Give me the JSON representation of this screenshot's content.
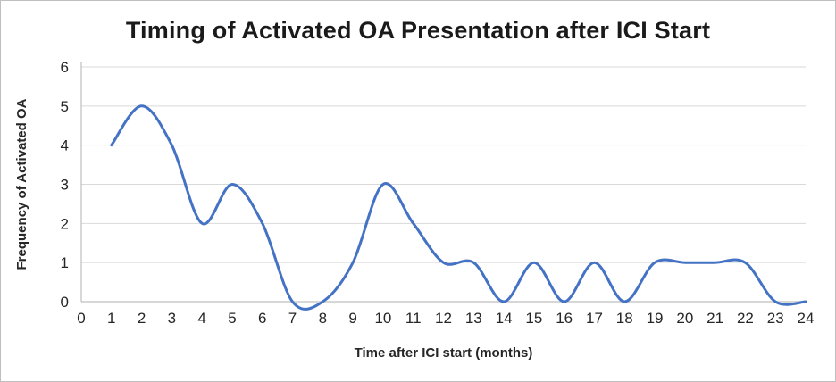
{
  "chart_data": {
    "type": "line",
    "title": "Timing of Activated OA Presentation after ICI Start",
    "xlabel": "Time after ICI start (months)",
    "ylabel": "Frequency of Activated OA",
    "x": [
      1,
      2,
      3,
      4,
      5,
      6,
      7,
      8,
      9,
      10,
      11,
      12,
      13,
      14,
      15,
      16,
      17,
      18,
      19,
      20,
      21,
      22,
      23,
      24
    ],
    "values": [
      4,
      5,
      4,
      2,
      3,
      2,
      0,
      0,
      1,
      3,
      2,
      1,
      1,
      0,
      1,
      0,
      1,
      0,
      1,
      1,
      1,
      1,
      0,
      0
    ],
    "x_ticks": [
      0,
      1,
      2,
      3,
      4,
      5,
      6,
      7,
      8,
      9,
      10,
      11,
      12,
      13,
      14,
      15,
      16,
      17,
      18,
      19,
      20,
      21,
      22,
      23,
      24
    ],
    "y_ticks": [
      0,
      1,
      2,
      3,
      4,
      5,
      6
    ],
    "xlim": [
      0,
      24
    ],
    "ylim": [
      0,
      6
    ],
    "grid": "horizontal",
    "legend": "none",
    "smooth": true,
    "line_color": "#4472C4",
    "gridline_color": "#d9d9d9",
    "axis_color": "#bfbfbf",
    "text_color": "#262626"
  }
}
